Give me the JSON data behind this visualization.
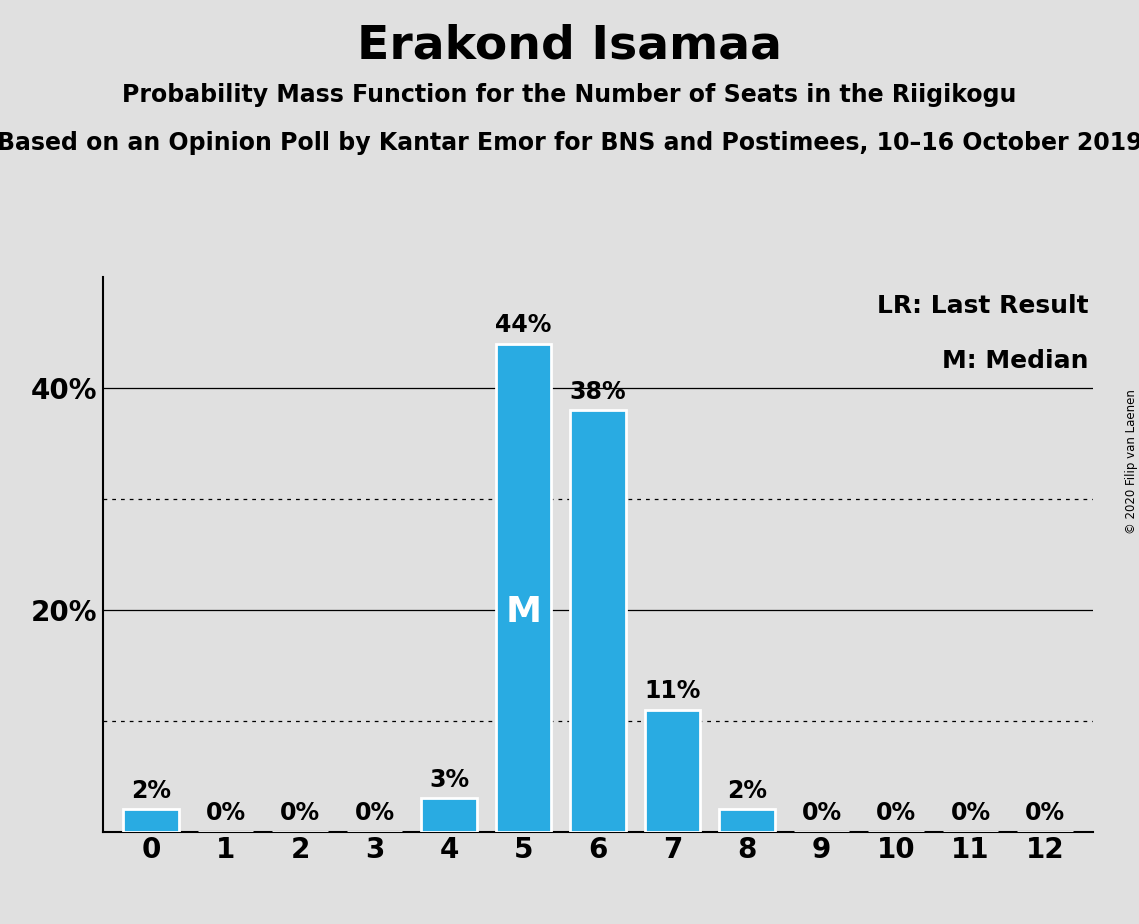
{
  "title": "Erakond Isamaa",
  "subtitle1": "Probability Mass Function for the Number of Seats in the Riigikogu",
  "subtitle2": "Based on an Opinion Poll by Kantar Emor for BNS and Postimees, 10–16 October 2019",
  "copyright": "© 2020 Filip van Laenen",
  "categories": [
    0,
    1,
    2,
    3,
    4,
    5,
    6,
    7,
    8,
    9,
    10,
    11,
    12
  ],
  "values": [
    2,
    0,
    0,
    0,
    3,
    44,
    38,
    11,
    2,
    0,
    0,
    0,
    0
  ],
  "labels": [
    "2%",
    "0%",
    "0%",
    "0%",
    "3%",
    "44%",
    "38%",
    "11%",
    "2%",
    "0%",
    "0%",
    "0%",
    "0%"
  ],
  "median_bar": 5,
  "lr_bar": 12,
  "bar_color": "#29ABE2",
  "median_label": "M",
  "lr_label": "LR",
  "legend_lr": "LR: Last Result",
  "legend_m": "M: Median",
  "background_color": "#E0E0E0",
  "ylim_max": 50,
  "solid_gridlines": [
    20,
    40
  ],
  "dotted_gridlines": [
    10,
    30
  ],
  "bar_width": 0.75,
  "title_fontsize": 34,
  "subtitle1_fontsize": 17,
  "subtitle2_fontsize": 17,
  "axis_tick_fontsize": 20,
  "bar_label_fontsize": 17,
  "median_text_fontsize": 26,
  "legend_fontsize": 18,
  "lr_label_fontsize": 22,
  "copyright_fontsize": 8.5
}
